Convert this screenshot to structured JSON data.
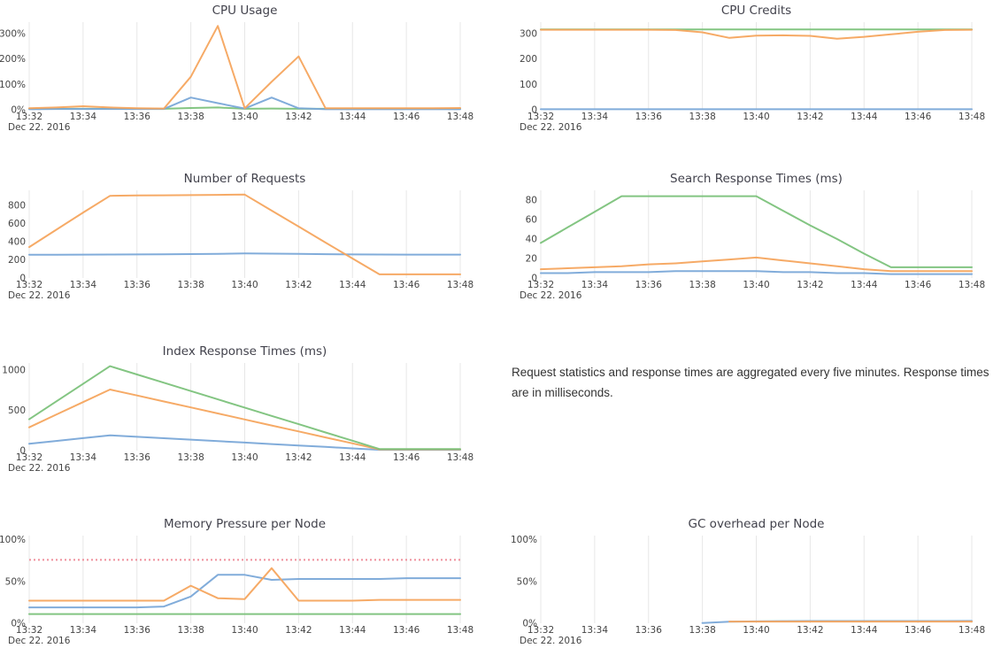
{
  "date_label": "Dec 22. 2016",
  "x_ticks": [
    "13:32",
    "13:34",
    "13:36",
    "13:38",
    "13:40",
    "13:42",
    "13:44",
    "13:46",
    "13:48"
  ],
  "x_points": [
    "13:32",
    "13:33",
    "13:34",
    "13:35",
    "13:36",
    "13:37",
    "13:38",
    "13:39",
    "13:40",
    "13:41",
    "13:42",
    "13:43",
    "13:44",
    "13:45",
    "13:46",
    "13:47",
    "13:48"
  ],
  "note": {
    "text": "Request statistics and response times are aggregated every five minutes. Response times are in milliseconds."
  },
  "colors": {
    "blue": "#7aa8d8",
    "orange": "#f6a55e",
    "green": "#7cc27b",
    "threshold": "#ef8f9b",
    "grid": "#e7e7e7",
    "text": "#444444",
    "title": "#42424c"
  },
  "chart_data": [
    {
      "type": "line",
      "title": "CPU Usage",
      "y_max": 345,
      "y_ticks": [
        {
          "v": 0,
          "label": "0%"
        },
        {
          "v": 100,
          "label": "100%"
        },
        {
          "v": 200,
          "label": "200%"
        },
        {
          "v": 300,
          "label": "300%"
        }
      ],
      "series": [
        {
          "name": "green",
          "color": "green",
          "values": [
            4,
            4,
            4,
            4,
            4,
            4,
            7,
            9,
            4,
            5,
            4,
            4,
            4,
            4,
            4,
            4,
            4
          ]
        },
        {
          "name": "blue",
          "color": "blue",
          "values": [
            2,
            3,
            3,
            3,
            3,
            3,
            48,
            26,
            5,
            48,
            6,
            2,
            2,
            2,
            2,
            2,
            2
          ]
        },
        {
          "name": "orange",
          "color": "orange",
          "values": [
            6,
            9,
            14,
            9,
            6,
            5,
            130,
            330,
            6,
            110,
            210,
            6,
            6,
            6,
            6,
            6,
            7
          ]
        }
      ]
    },
    {
      "type": "line",
      "title": "CPU Credits",
      "y_max": 345,
      "y_ticks": [
        {
          "v": 0,
          "label": "0"
        },
        {
          "v": 100,
          "label": "100"
        },
        {
          "v": 200,
          "label": "200"
        },
        {
          "v": 300,
          "label": "300"
        }
      ],
      "series": [
        {
          "name": "blue",
          "color": "blue",
          "values": [
            2,
            2,
            2,
            2,
            2,
            2,
            2,
            2,
            2,
            2,
            2,
            2,
            2,
            2,
            2,
            2,
            2
          ]
        },
        {
          "name": "green",
          "color": "green",
          "values": [
            316,
            316,
            316,
            316,
            316,
            316,
            316,
            316,
            316,
            316,
            316,
            316,
            316,
            316,
            316,
            316,
            316
          ]
        },
        {
          "name": "orange",
          "color": "orange",
          "values": [
            315,
            315,
            315,
            315,
            315,
            314,
            305,
            283,
            292,
            293,
            291,
            280,
            287,
            297,
            307,
            314,
            315
          ]
        }
      ]
    },
    {
      "type": "line",
      "title": "Number of Requests",
      "y_max": 965,
      "y_ticks": [
        {
          "v": 0,
          "label": "0"
        },
        {
          "v": 200,
          "label": "200"
        },
        {
          "v": 400,
          "label": "400"
        },
        {
          "v": 600,
          "label": "600"
        },
        {
          "v": 800,
          "label": "800"
        }
      ],
      "series": [
        {
          "name": "blue",
          "color": "blue",
          "values": [
            256,
            256,
            257,
            258,
            259,
            261,
            263,
            266,
            270,
            268,
            265,
            262,
            259,
            258,
            257,
            257,
            257
          ]
        },
        {
          "name": "orange",
          "color": "orange",
          "values": [
            340,
            530,
            720,
            905,
            908,
            910,
            912,
            915,
            918,
            742,
            566,
            390,
            214,
            40,
            40,
            40,
            40
          ]
        }
      ]
    },
    {
      "type": "line",
      "title": "Search Response Times (ms)",
      "y_max": 90,
      "y_ticks": [
        {
          "v": 0,
          "label": "0"
        },
        {
          "v": 20,
          "label": "20"
        },
        {
          "v": 40,
          "label": "40"
        },
        {
          "v": 60,
          "label": "60"
        },
        {
          "v": 80,
          "label": "80"
        }
      ],
      "series": [
        {
          "name": "blue",
          "color": "blue",
          "values": [
            5,
            5,
            6,
            6,
            6,
            7,
            7,
            7,
            7,
            6,
            6,
            5,
            5,
            4,
            4,
            4,
            4
          ]
        },
        {
          "name": "orange",
          "color": "orange",
          "values": [
            9,
            10,
            11,
            12,
            14,
            15,
            17,
            19,
            21,
            18,
            15,
            12,
            9,
            7,
            7,
            7,
            7
          ]
        },
        {
          "name": "green",
          "color": "green",
          "values": [
            36,
            52,
            68,
            84,
            84,
            84,
            84,
            84,
            84,
            69,
            54,
            40,
            25,
            11,
            11,
            11,
            11
          ]
        }
      ]
    },
    {
      "type": "line",
      "title": "Index Response Times (ms)",
      "y_max": 1090,
      "y_ticks": [
        {
          "v": 0,
          "label": "0"
        },
        {
          "v": 500,
          "label": "500"
        },
        {
          "v": 1000,
          "label": "1000"
        }
      ],
      "series": [
        {
          "name": "blue",
          "color": "blue",
          "values": [
            85,
            120,
            155,
            190,
            172,
            154,
            136,
            118,
            100,
            82,
            64,
            46,
            28,
            10,
            10,
            10,
            10
          ]
        },
        {
          "name": "orange",
          "color": "orange",
          "values": [
            290,
            447,
            603,
            760,
            686,
            611,
            537,
            462,
            388,
            313,
            239,
            164,
            90,
            15,
            15,
            15,
            15
          ]
        },
        {
          "name": "green",
          "color": "green",
          "values": [
            390,
            610,
            830,
            1050,
            947,
            844,
            741,
            638,
            535,
            432,
            329,
            226,
            123,
            20,
            20,
            20,
            20
          ]
        }
      ]
    },
    {
      "type": "line",
      "title": "Memory Pressure per Node",
      "y_max": 105,
      "y_ticks": [
        {
          "v": 0,
          "label": "0%"
        },
        {
          "v": 50,
          "label": "50%"
        },
        {
          "v": 100,
          "label": "100%"
        }
      ],
      "threshold": {
        "value": 76,
        "style": "dotted"
      },
      "series": [
        {
          "name": "green",
          "color": "green",
          "values": [
            11,
            11,
            11,
            11,
            11,
            11,
            11,
            11,
            11,
            11,
            11,
            11,
            11,
            11,
            11,
            11,
            11
          ]
        },
        {
          "name": "blue",
          "color": "blue",
          "values": [
            19,
            19,
            19,
            19,
            19,
            20,
            32,
            58,
            58,
            52,
            53,
            53,
            53,
            53,
            54,
            54,
            54
          ]
        },
        {
          "name": "orange",
          "color": "orange",
          "values": [
            27,
            27,
            27,
            27,
            27,
            27,
            45,
            30,
            29,
            66,
            27,
            27,
            27,
            28,
            28,
            28,
            28
          ]
        }
      ]
    },
    {
      "type": "line",
      "title": "GC overhead per Node",
      "y_max": 105,
      "y_ticks": [
        {
          "v": 0,
          "label": "0%"
        },
        {
          "v": 50,
          "label": "50%"
        },
        {
          "v": 100,
          "label": "100%"
        }
      ],
      "series": [
        {
          "name": "blue",
          "color": "blue",
          "values": [
            null,
            null,
            null,
            null,
            null,
            null,
            0.3,
            1.8,
            2.2,
            2.5,
            2.6,
            2.6,
            2.6,
            2.6,
            2.7,
            2.7,
            2.8
          ]
        },
        {
          "name": "orange",
          "color": "orange",
          "values": [
            null,
            null,
            null,
            null,
            null,
            null,
            null,
            2,
            2,
            2,
            2,
            2,
            2,
            2,
            2,
            2,
            2
          ]
        }
      ]
    }
  ]
}
